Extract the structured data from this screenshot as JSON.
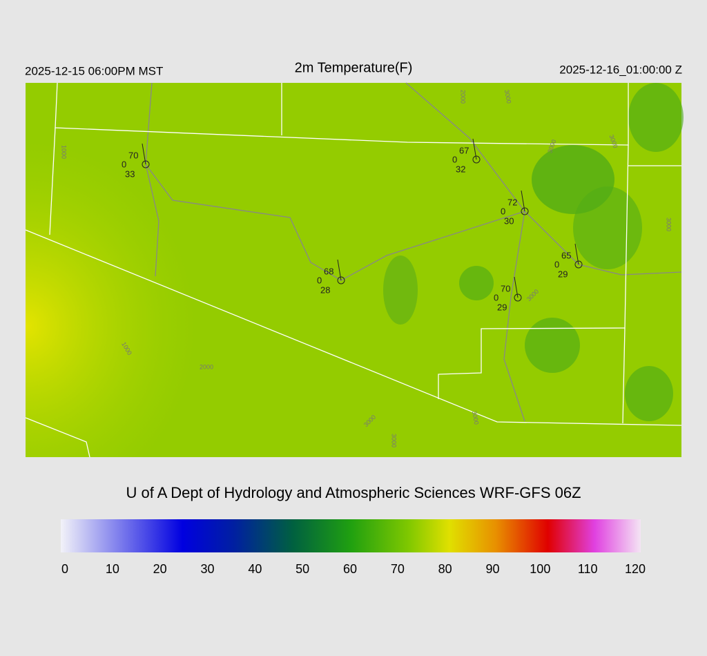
{
  "header": {
    "left": "2025-12-15 06:00PM MST",
    "title": "2m Temperature(F)",
    "right": "2025-12-16_01:00:00 Z"
  },
  "stations": [
    {
      "temperature": "70",
      "wind": "0",
      "dewpoint": "33"
    },
    {
      "temperature": "67",
      "wind": "0",
      "dewpoint": "32"
    },
    {
      "temperature": "72",
      "wind": "0",
      "dewpoint": "30"
    },
    {
      "temperature": "65",
      "wind": "0",
      "dewpoint": "29"
    },
    {
      "temperature": "68",
      "wind": "0",
      "dewpoint": "28"
    },
    {
      "temperature": "70",
      "wind": "0",
      "dewpoint": "29"
    }
  ],
  "contour_labels": [
    "1000",
    "1000",
    "2000",
    "2000",
    "3000",
    "3000",
    "3000",
    "3000",
    "3000",
    "3000",
    "3000",
    "3000"
  ],
  "credit": "U of A Dept of Hydrology and Atmospheric Sciences WRF-GFS 06Z",
  "colorbar": {
    "ticks": [
      0,
      10,
      20,
      30,
      40,
      50,
      60,
      70,
      80,
      90,
      100,
      110,
      120
    ]
  }
}
